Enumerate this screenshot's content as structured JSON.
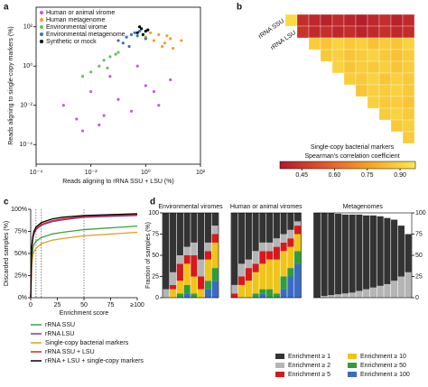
{
  "chart_data": [
    {
      "panel": "a",
      "type": "scatter",
      "log_x": true,
      "log_y": true,
      "x_label": "Reads aligning to rRNA SSU + LSU (%)",
      "y_label": "Reads aligning to single-copy markers (%)",
      "xlim": [
        0.0001,
        100
      ],
      "xticks": [
        {
          "value": 0.0001,
          "label": "10⁻⁴"
        },
        {
          "value": 0.01,
          "label": "10⁻²"
        },
        {
          "value": 1,
          "label": "10⁰"
        },
        {
          "value": 100,
          "label": "10²"
        }
      ],
      "ylim": [
        1e-05,
        1000
      ],
      "yticks": [
        {
          "value": 0.0001,
          "label": "10⁻⁴"
        },
        {
          "value": 0.01,
          "label": "10⁻²"
        },
        {
          "value": 1,
          "label": "10⁰"
        },
        {
          "value": 100,
          "label": "10²"
        }
      ],
      "legend": "upper left",
      "series": [
        {
          "name": "Human or animal virome",
          "color": "#c45bd6",
          "x": [
            0.001,
            0.003,
            0.01,
            0.02,
            0.05,
            0.1,
            0.3,
            1,
            3,
            0.005,
            0.03,
            0.5,
            2,
            8
          ],
          "y": [
            0.01,
            0.002,
            0.05,
            0.001,
            0.3,
            0.02,
            0.005,
            0.1,
            0.01,
            0.0005,
            0.003,
            1,
            0.05,
            0.2
          ]
        },
        {
          "name": "Human metagenome",
          "color": "#f0a030",
          "x": [
            1,
            2,
            3,
            5,
            8,
            1.5,
            4,
            10,
            20,
            6
          ],
          "y": [
            30,
            20,
            40,
            15,
            25,
            50,
            10,
            8,
            20,
            35
          ]
        },
        {
          "name": "Environmental virome",
          "color": "#66c266",
          "x": [
            0.01,
            0.02,
            0.03,
            0.05,
            0.005,
            0.1,
            0.04,
            0.08
          ],
          "y": [
            0.5,
            1,
            2,
            3,
            0.3,
            5,
            0.8,
            4
          ]
        },
        {
          "name": "Environmental metagenome",
          "color": "#3a72c4",
          "x": [
            0.1,
            0.2,
            0.3,
            0.5,
            0.15,
            0.4,
            1,
            0.25,
            0.6
          ],
          "y": [
            20,
            30,
            40,
            35,
            15,
            50,
            25,
            10,
            60
          ]
        },
        {
          "name": "Synthetic or mock",
          "color": "#000000",
          "x": [
            0.5,
            0.7,
            1,
            0.6,
            0.8,
            1.2
          ],
          "y": [
            50,
            80,
            60,
            100,
            40,
            70
          ]
        }
      ]
    },
    {
      "panel": "b",
      "type": "heatmap",
      "subtitle": "Single-copy bacterial markers",
      "colorbar_label": "Spearman's correlation coefficient",
      "labels": [
        "rRNA SSU",
        "rRNA LSU",
        null,
        null,
        null,
        null,
        null,
        null,
        null,
        null,
        null,
        null
      ],
      "values": [
        [
          0.92,
          0.42,
          0.4,
          0.38,
          0.41,
          0.39,
          0.37,
          0.4,
          0.42,
          0.38,
          0.41
        ],
        [
          0.44,
          0.41,
          0.43,
          0.4,
          0.42,
          0.39,
          0.41,
          0.43,
          0.4,
          0.42
        ],
        [
          0.88,
          0.86,
          0.9,
          0.87,
          0.89,
          0.85,
          0.88,
          0.86,
          0.9
        ],
        [
          0.87,
          0.89,
          0.86,
          0.88,
          0.9,
          0.87,
          0.85,
          0.88
        ],
        [
          0.9,
          0.86,
          0.88,
          0.87,
          0.89,
          0.86,
          0.88
        ],
        [
          0.88,
          0.87,
          0.9,
          0.86,
          0.89,
          0.87
        ],
        [
          0.86,
          0.89,
          0.88,
          0.9,
          0.87
        ],
        [
          0.89,
          0.87,
          0.88,
          0.86
        ],
        [
          0.88,
          0.9,
          0.87
        ],
        [
          0.87,
          0.89
        ],
        [
          0.88
        ]
      ],
      "clim": [
        0.35,
        0.97
      ],
      "cticks": [
        {
          "value": 0.45,
          "label": "0.45"
        },
        {
          "value": 0.6,
          "label": "0.60"
        },
        {
          "value": 0.75,
          "label": "0.75"
        },
        {
          "value": 0.9,
          "label": "0.90"
        }
      ],
      "colors": [
        "#b2182b",
        "#e4572e",
        "#f5a623",
        "#fbe94d"
      ]
    },
    {
      "panel": "c",
      "type": "line",
      "x_label": "Enrichment score",
      "y_label": "Discarded samples (%)",
      "x": [
        0,
        1,
        2,
        3,
        5,
        10,
        20,
        30,
        50,
        75,
        100
      ],
      "xlim": [
        0,
        100
      ],
      "xticks": [
        0,
        25,
        50,
        75,
        {
          "value": 100,
          "label": "≥100"
        }
      ],
      "ylim": [
        0,
        100
      ],
      "yticks": [
        {
          "value": 0,
          "label": "0%"
        },
        {
          "value": 25,
          "label": "25%"
        },
        {
          "value": 50,
          "label": "50%"
        },
        {
          "value": 75,
          "label": "75%"
        },
        {
          "value": 100,
          "label": "100%"
        }
      ],
      "vlines": [
        5,
        10,
        50
      ],
      "series": [
        {
          "name": "rRNA SSU",
          "color": "#3aa23a",
          "values": [
            0,
            45,
            55,
            60,
            64,
            68,
            72,
            74,
            77,
            79,
            81
          ]
        },
        {
          "name": "rRNA LSU",
          "color": "#7b3fa0",
          "values": [
            0,
            55,
            66,
            72,
            77,
            82,
            86,
            88,
            91,
            92,
            93
          ]
        },
        {
          "name": "Single-copy bacterial markers",
          "color": "#e0a020",
          "values": [
            0,
            38,
            47,
            52,
            56,
            61,
            65,
            67,
            70,
            72,
            74
          ]
        },
        {
          "name": "rRNA SSU + LSU",
          "color": "#d62728",
          "values": [
            0,
            56,
            67,
            73,
            78,
            83,
            87,
            89,
            92,
            93,
            94
          ]
        },
        {
          "name": "rRNA + LSU + single-copy markers",
          "color": "#000000",
          "values": [
            0,
            58,
            69,
            75,
            80,
            85,
            89,
            91,
            93,
            94,
            95
          ]
        }
      ]
    },
    {
      "panel": "d",
      "type": "stacked_bar",
      "y_label": "Fraction of samples (%)",
      "groups": [
        {
          "title": "Environmental viromes",
          "categories": [
            null,
            null,
            null,
            null,
            null,
            null,
            null,
            null
          ]
        },
        {
          "title": "Human or animal viromes",
          "categories": [
            null,
            null,
            null,
            null,
            null,
            null,
            null,
            null,
            null,
            null
          ]
        },
        {
          "title": "Metagenomes",
          "categories": [
            null,
            null,
            null,
            null,
            null,
            null,
            null,
            null,
            null,
            null,
            null,
            null,
            null,
            null
          ]
        }
      ],
      "ylim": [
        0,
        100
      ],
      "yticks": [
        0,
        25,
        50,
        75,
        100
      ],
      "series": [
        {
          "name": "Enrichment ≥ 1",
          "color": "#333333",
          "values": [
            90,
            70,
            50,
            40,
            35,
            55,
            35,
            15,
            85,
            60,
            55,
            45,
            35,
            35,
            30,
            25,
            20,
            10,
            100,
            98,
            97,
            95,
            93,
            92,
            90,
            87,
            85,
            82,
            78,
            72,
            60,
            45
          ]
        },
        {
          "name": "Enrichment ≥ 2",
          "color": "#b5b5b5",
          "values": [
            10,
            15,
            10,
            10,
            15,
            20,
            10,
            10,
            10,
            15,
            10,
            15,
            10,
            10,
            10,
            10,
            10,
            5,
            0,
            2,
            3,
            4,
            5,
            6,
            8,
            10,
            12,
            14,
            16,
            20,
            25,
            30
          ]
        },
        {
          "name": "Enrichment ≥ 5",
          "color": "#d7191c",
          "values": [
            0,
            5,
            20,
            10,
            25,
            15,
            10,
            10,
            5,
            10,
            15,
            10,
            15,
            10,
            15,
            10,
            10,
            10,
            0,
            0,
            0,
            0,
            0,
            0,
            0,
            0,
            0,
            0,
            0,
            0,
            0,
            0
          ]
        },
        {
          "name": "Enrichment ≥ 10",
          "color": "#f0c419",
          "values": [
            0,
            10,
            15,
            25,
            20,
            10,
            25,
            30,
            0,
            15,
            20,
            25,
            30,
            35,
            40,
            30,
            25,
            20,
            0,
            0,
            0,
            0,
            0,
            0,
            0,
            0,
            0,
            0,
            0,
            0,
            0,
            0
          ]
        },
        {
          "name": "Enrichment ≥ 50",
          "color": "#2e9e3a",
          "values": [
            0,
            0,
            5,
            10,
            5,
            0,
            10,
            15,
            0,
            0,
            0,
            5,
            5,
            10,
            5,
            15,
            10,
            15,
            0,
            0,
            0,
            0,
            0,
            0,
            0,
            0,
            0,
            0,
            0,
            0,
            0,
            0
          ]
        },
        {
          "name": "Enrichment ≥ 100",
          "color": "#3b6bc4",
          "values": [
            0,
            0,
            0,
            5,
            0,
            0,
            10,
            20,
            0,
            0,
            0,
            0,
            5,
            0,
            0,
            10,
            25,
            40,
            0,
            0,
            0,
            0,
            0,
            0,
            0,
            0,
            0,
            0,
            0,
            0,
            0,
            0
          ]
        }
      ]
    }
  ]
}
